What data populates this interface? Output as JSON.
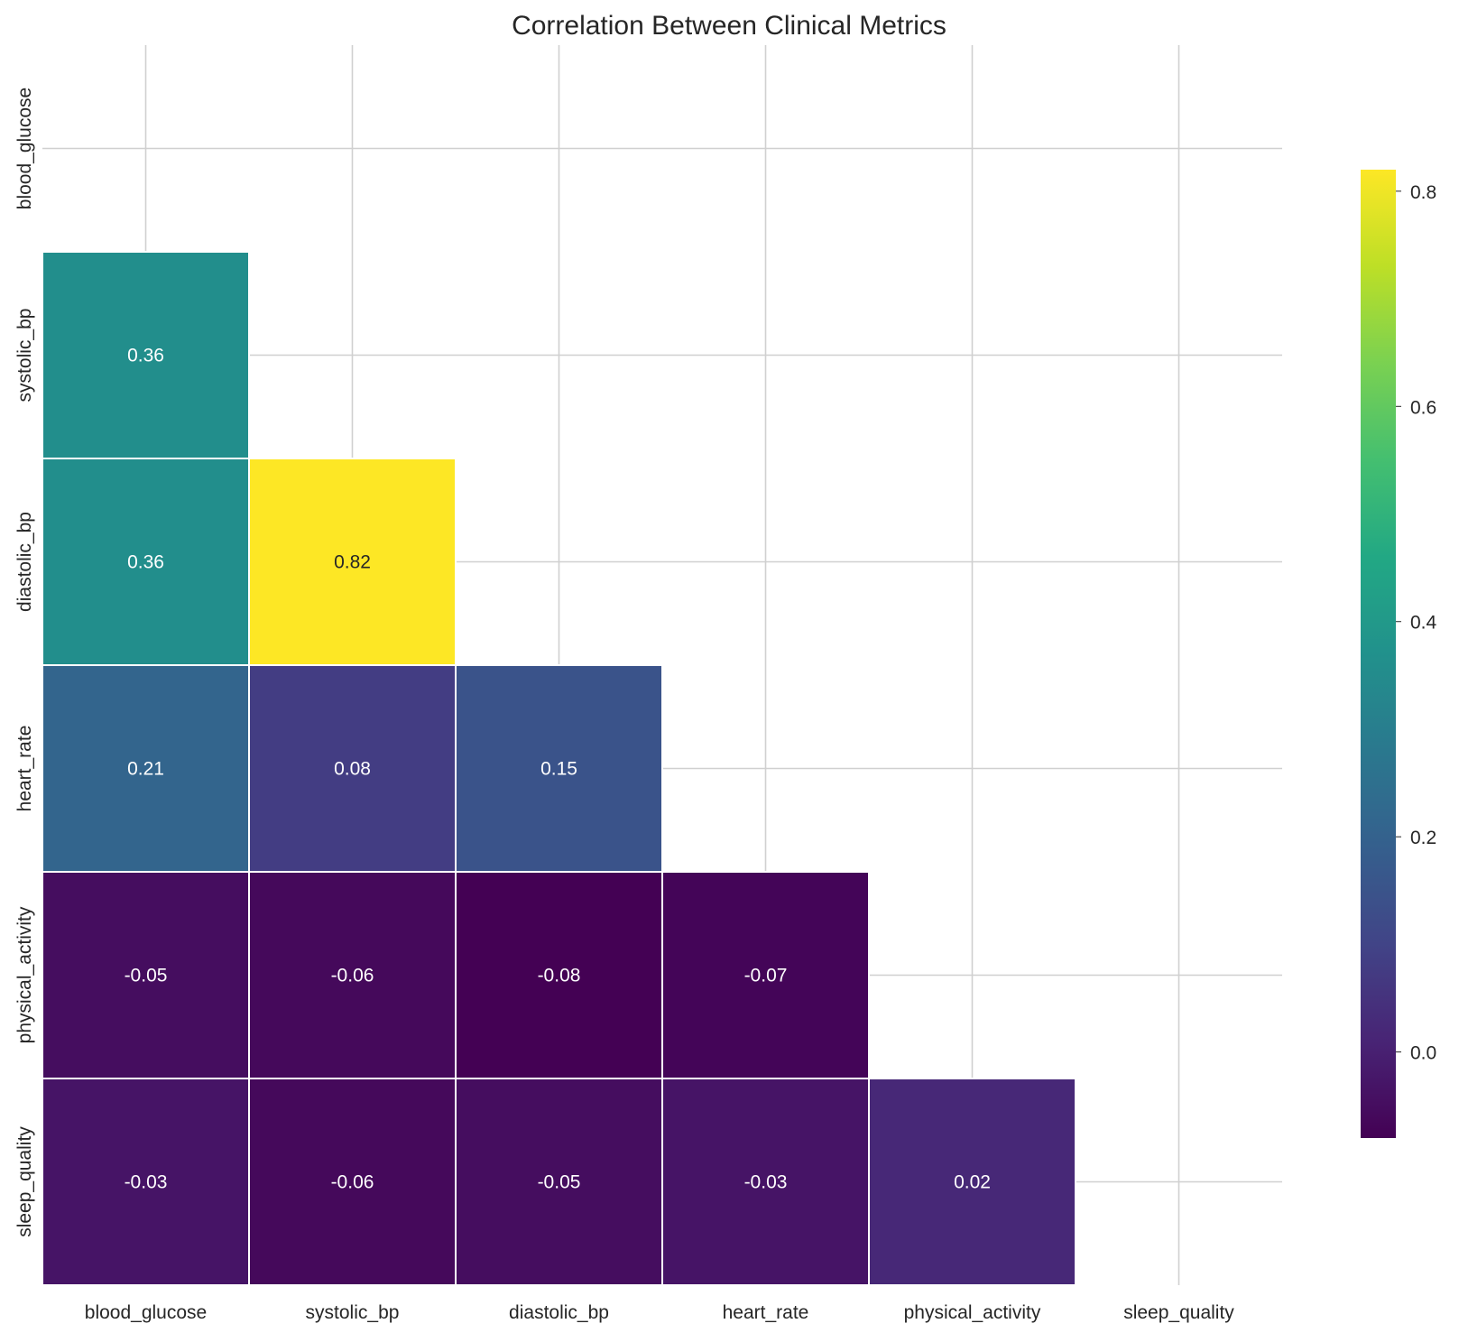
{
  "chart_data": {
    "type": "heatmap",
    "title": "Correlation Between Clinical Metrics",
    "variables": [
      "blood_glucose",
      "systolic_bp",
      "diastolic_bp",
      "heart_rate",
      "physical_activity",
      "sleep_quality"
    ],
    "mask": "upper-triangle-including-diagonal",
    "values": [
      [
        null,
        null,
        null,
        null,
        null,
        null
      ],
      [
        0.36,
        null,
        null,
        null,
        null,
        null
      ],
      [
        0.36,
        0.82,
        null,
        null,
        null,
        null
      ],
      [
        0.21,
        0.08,
        0.15,
        null,
        null,
        null
      ],
      [
        -0.05,
        -0.06,
        -0.08,
        -0.07,
        null,
        null
      ],
      [
        -0.03,
        -0.06,
        -0.05,
        -0.03,
        0.02,
        null
      ]
    ],
    "labels": [
      [
        null,
        null,
        null,
        null,
        null,
        null
      ],
      [
        "0.36",
        null,
        null,
        null,
        null,
        null
      ],
      [
        "0.36",
        "0.82",
        null,
        null,
        null,
        null
      ],
      [
        "0.21",
        "0.08",
        "0.15",
        null,
        null,
        null
      ],
      [
        "-0.05",
        "-0.06",
        "-0.08",
        "-0.07",
        null,
        null
      ],
      [
        "-0.03",
        "-0.06",
        "-0.05",
        "-0.03",
        "0.02",
        null
      ]
    ],
    "colormap": "viridis",
    "color_range": [
      -0.08,
      0.82
    ],
    "colorbar_ticks": [
      "0.0",
      "0.2",
      "0.4",
      "0.6",
      "0.8"
    ],
    "colorbar_tick_values": [
      0.0,
      0.2,
      0.4,
      0.6,
      0.8
    ],
    "grid": true,
    "colors": {
      "grid": "#d0d0d0",
      "cell_border": "#ffffff",
      "label_light": "#ffffff",
      "label_dark": "#262626"
    }
  }
}
